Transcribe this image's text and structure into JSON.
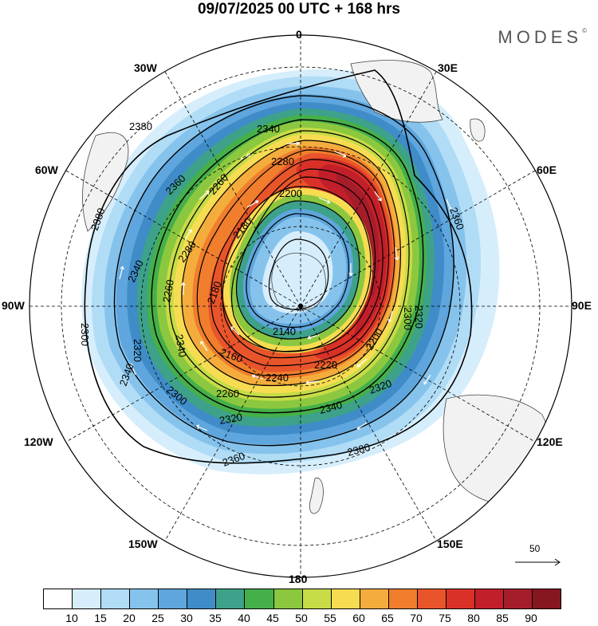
{
  "title": "09/07/2025  00 UTC  + 168 hrs",
  "brand": "MODES",
  "brand_mark": "©",
  "longitude_labels": {
    "north": "0",
    "south": "180",
    "lon_30w": "30W",
    "lon_30e": "30E",
    "lon_60w": "60W",
    "lon_60e": "60E",
    "lon_90w": "90W",
    "lon_90e": "90E",
    "lon_120w": "120W",
    "lon_120e": "120E",
    "lon_150w": "150W",
    "lon_150e": "150E"
  },
  "contour_labels": {
    "c2380_nw": "2380",
    "c2380_w": "2380",
    "c2380_se": "2380",
    "c2360_ne": "2360",
    "c2360_s": "2360",
    "c2360_nw": "2360",
    "c2340_n": "2340",
    "c2340_w": "2340",
    "c2340_sw": "2340",
    "c2340_s": "2340",
    "c2320_w": "2320",
    "c2320_s": "2320",
    "c2320_se": "2320",
    "c2320_e": "2320",
    "c2300_w": "2300",
    "c2300_sw": "2300",
    "c2300_e": "2300",
    "c2280_n": "2280",
    "c2280_nw": "2280",
    "c2260_w": "2260",
    "c2260_s": "2260",
    "c2260_n": "2260",
    "c2240_s": "2240",
    "c2240_w": "2240",
    "c2220_s": "2220",
    "c2200_n": "2200",
    "c2200_e": "2200",
    "c2180_n": "2180",
    "c2180_w": "2180",
    "c2160_s": "2160",
    "c2140_s": "2140",
    "c2340_inner_w": "2340"
  },
  "vector_reference": "50",
  "legend": {
    "colors": [
      "#ffffff",
      "#d6eefc",
      "#b0dcf6",
      "#86c3ec",
      "#5ea6dd",
      "#3f8cc8",
      "#3ea18a",
      "#45b04a",
      "#8cc83f",
      "#c7dc47",
      "#f7dc52",
      "#f4ad3d",
      "#f07e2c",
      "#e9552b",
      "#d93128",
      "#c11f29",
      "#a61d2a",
      "#86161f"
    ],
    "ticks": [
      "10",
      "15",
      "20",
      "25",
      "30",
      "35",
      "40",
      "45",
      "50",
      "55",
      "60",
      "65",
      "70",
      "75",
      "80",
      "85",
      "90"
    ]
  }
}
